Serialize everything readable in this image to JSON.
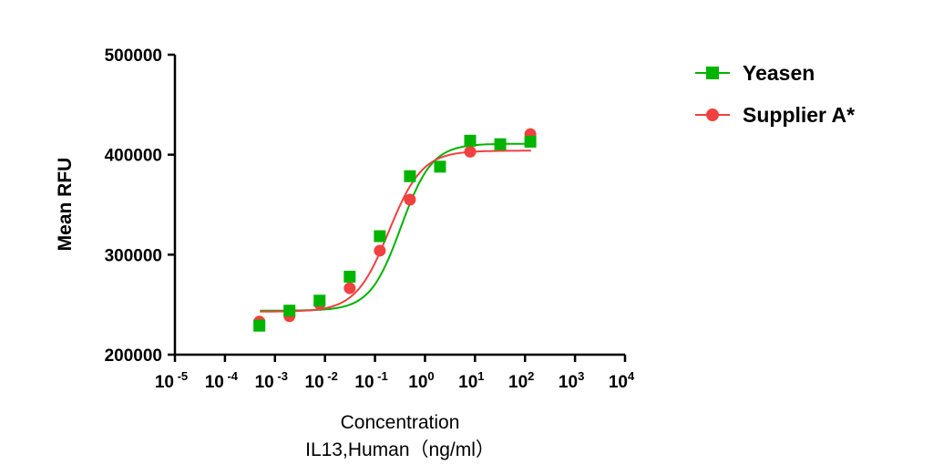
{
  "chart_data": {
    "type": "scatter",
    "title": "",
    "xlabel": "Concentration",
    "xlabel2": "IL13,Human（ng/ml）",
    "ylabel": "Mean RFU",
    "xscale": "log10",
    "xlim_exp": [
      -5,
      4
    ],
    "x_ticks_exp": [
      -5,
      -4,
      -3,
      -2,
      -1,
      0,
      1,
      2,
      3,
      4
    ],
    "ylim": [
      200000,
      500000
    ],
    "y_ticks": [
      200000,
      300000,
      400000,
      500000
    ],
    "y_tick_labels": [
      "200000",
      "300000",
      "400000",
      "500000"
    ],
    "grid": false,
    "legend_position": "top-right",
    "series": [
      {
        "name": "Yeasen",
        "color": "#00b400",
        "marker": "square",
        "x": [
          0.000488,
          0.00195,
          0.0078,
          0.03125,
          0.125,
          0.5,
          2,
          8,
          32,
          128
        ],
        "y": [
          229000,
          244000,
          254000,
          278000,
          318500,
          378500,
          388000,
          414000,
          410500,
          413000
        ],
        "fit": {
          "bottom": 244000,
          "top": 411000,
          "ec50": 0.33,
          "hill": 1.4
        }
      },
      {
        "name": "Supplier A*",
        "color": "#f04040",
        "marker": "circle",
        "x": [
          0.000488,
          0.00195,
          0.0078,
          0.03125,
          0.125,
          0.5,
          8,
          128
        ],
        "y": [
          233000,
          238500,
          251000,
          266500,
          304000,
          355000,
          403000,
          420500
        ],
        "fit": {
          "bottom": 243000,
          "top": 404000,
          "ec50": 0.19,
          "hill": 1.3
        }
      }
    ]
  }
}
